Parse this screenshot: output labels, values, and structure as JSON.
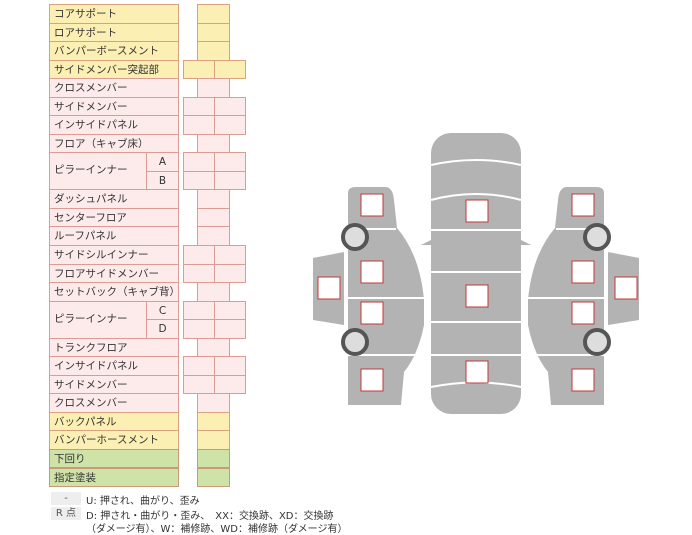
{
  "rows": [
    {
      "label": "コアサポート",
      "color": "y",
      "cells": 1
    },
    {
      "label": "ロアサポート",
      "color": "y",
      "cells": 1
    },
    {
      "label": "バンパーボースメント",
      "color": "y",
      "cells": 1
    },
    {
      "label": "サイドメンバー突起部",
      "color": "y",
      "cells": 2
    },
    {
      "label": "クロスメンバー",
      "color": "p",
      "cells": 1
    },
    {
      "label": "サイドメンバー",
      "color": "p",
      "cells": 2
    },
    {
      "label": "インサイドパネル",
      "color": "p",
      "cells": 2
    },
    {
      "label": "フロア（キャブ床）",
      "color": "p",
      "cells": 1
    },
    {
      "label": "ピラーインナー",
      "sub": "A",
      "color": "p",
      "cells": 2
    },
    {
      "label": "",
      "sub": "B",
      "color": "p",
      "cells": 2
    },
    {
      "label": "ダッシュパネル",
      "color": "p",
      "cells": 1
    },
    {
      "label": "センターフロア",
      "color": "p",
      "cells": 1
    },
    {
      "label": "ルーフパネル",
      "color": "p",
      "cells": 1
    },
    {
      "label": "サイドシルインナー",
      "color": "p",
      "cells": 2
    },
    {
      "label": "フロアサイドメンバー",
      "color": "p",
      "cells": 2
    },
    {
      "label": "セットバック（キャブ背）",
      "color": "p",
      "cells": 1
    },
    {
      "label": "ピラーインナー",
      "sub": "C",
      "color": "p",
      "cells": 2
    },
    {
      "label": "",
      "sub": "D",
      "color": "p",
      "cells": 2
    },
    {
      "label": "トランクフロア",
      "color": "p",
      "cells": 1
    },
    {
      "label": "インサイドパネル",
      "color": "p",
      "cells": 2
    },
    {
      "label": "サイドメンバー",
      "color": "p",
      "cells": 2
    },
    {
      "label": "クロスメンバー",
      "color": "p",
      "cells": 1
    },
    {
      "label": "バックパネル",
      "color": "y",
      "cells": 1
    },
    {
      "label": "バンパーホースメント",
      "color": "y",
      "cells": 1
    },
    {
      "label": "下回り",
      "color": "g",
      "cells": 1
    },
    {
      "label": "指定塗装",
      "color": "g",
      "cells": 1
    }
  ],
  "legend": {
    "dash_tag": "-",
    "dash_text": "U: 押され、曲がり、歪み",
    "r_tag": "R 点",
    "r_text1": "D: 押され・曲がり・歪み、　XX：交換跡、XD：交換跡",
    "r_text2": "（ダメージ有）、W：補修跡、WD：補修跡（ダメージ有）"
  },
  "colors": {
    "body": "#b3b3b3",
    "marker": "#c0393b",
    "wheel": "#555555"
  }
}
